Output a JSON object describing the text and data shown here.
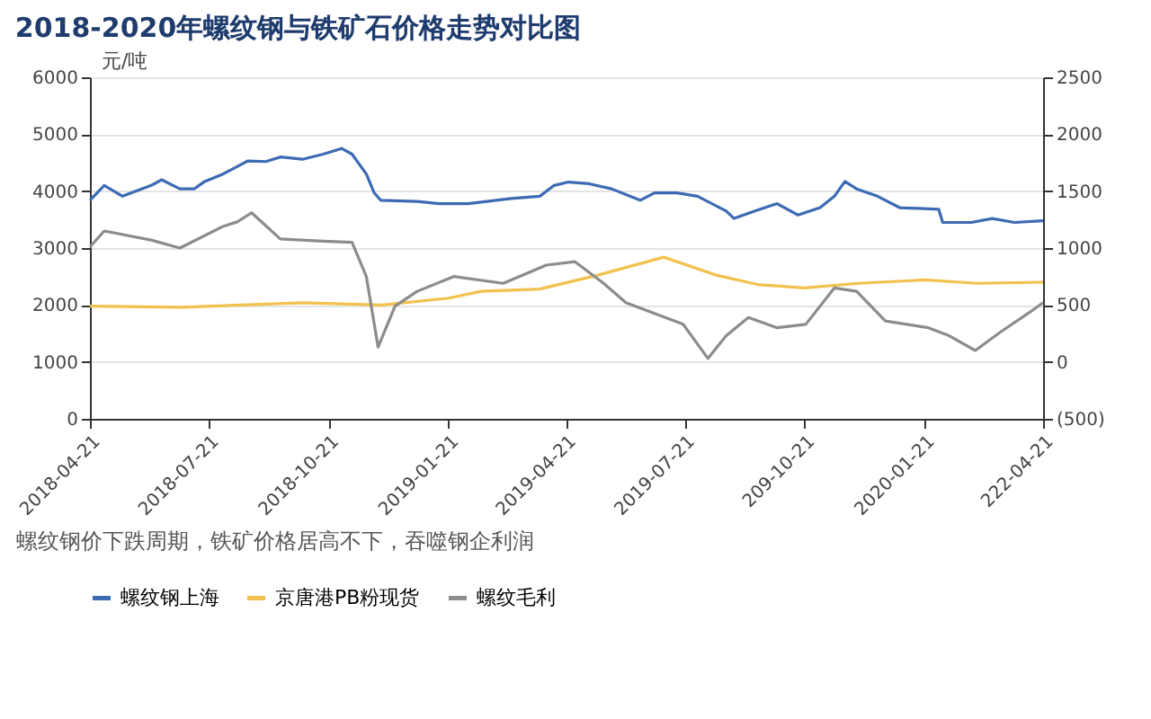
{
  "chart_data": {
    "type": "line",
    "title": "2018-2020年螺纹钢与铁矿石价格走势对比图",
    "ylabel": "元/吨",
    "annotations": [
      "螺纹钢价下跌周期，铁矿价格居高不下，吞噬钢企利润"
    ],
    "xlim": [
      "2018-04-21",
      "2020-04-21"
    ],
    "xticks": [
      "2018-04-21",
      "2018-07-21",
      "2018-10-21",
      "2019-01-21",
      "2019-04-21",
      "2019-07-21",
      {
        "value": "2019-10-21",
        "label": "209-10-21"
      },
      "2020-01-21",
      {
        "value": "2020-04-21",
        "label": "222-04-21"
      }
    ],
    "ylim": [
      0,
      6000
    ],
    "yticks": [
      0,
      1000,
      2000,
      3000,
      4000,
      5000,
      6000
    ],
    "y2lim": [
      -500,
      2500
    ],
    "y2ticks": [
      {
        "value": -500,
        "label": "(500)"
      },
      0,
      500,
      1000,
      1500,
      2000,
      2500
    ],
    "grid": "y",
    "legend": "bottom",
    "marker": "none",
    "line_style": "solid",
    "series": [
      {
        "name": "螺纹钢上海",
        "color": "#3d6bb3",
        "x": [
          "2018-04-21",
          "2018-05-02",
          "2018-05-16",
          "2018-06-07",
          "2018-06-15",
          "2018-06-29",
          "2018-07-10",
          "2018-07-18",
          "2018-08-01",
          "2018-08-20",
          "2018-09-03",
          "2018-09-14",
          "2018-10-01",
          "2018-10-17",
          "2018-10-31",
          "2018-11-08",
          "2018-11-19",
          "2018-11-25",
          "2018-11-30",
          "2018-12-28",
          "2019-01-14",
          "2019-02-05",
          "2019-03-10",
          "2019-04-01",
          "2019-04-12",
          "2019-04-23",
          "2019-05-09",
          "2019-05-26",
          "2019-06-17",
          "2019-06-28",
          "2019-07-15",
          "2019-07-31",
          "2019-08-11",
          "2019-08-22",
          "2019-08-28",
          "2019-09-13",
          "2019-09-30",
          "2019-10-16",
          "2019-11-02",
          "2019-11-13",
          "2019-11-21",
          "2019-11-30",
          "2019-12-16",
          "2020-01-02",
          "2020-02-01",
          "2020-02-04",
          "2020-02-26",
          "2020-03-13",
          "2020-03-30",
          "2020-04-21"
        ],
        "values": [
          3840,
          4100,
          3910,
          4100,
          4200,
          4040,
          4040,
          4170,
          4300,
          4530,
          4520,
          4600,
          4560,
          4650,
          4750,
          4650,
          4300,
          3970,
          3840,
          3820,
          3780,
          3780,
          3870,
          3910,
          4100,
          4160,
          4130,
          4040,
          3840,
          3970,
          3970,
          3910,
          3780,
          3650,
          3520,
          3650,
          3780,
          3580,
          3710,
          3910,
          4170,
          4040,
          3910,
          3710,
          3680,
          3450,
          3450,
          3520,
          3450,
          3480
        ]
      },
      {
        "name": "京唐港PB粉现货",
        "color": "#f2c14e",
        "axis": "y2",
        "x": [
          "2018-04-21",
          "2018-07-01",
          "2018-10-01",
          "2018-12-01",
          "2019-01-21",
          "2019-02-15",
          "2019-04-01",
          "2019-05-15",
          "2019-07-05",
          "2019-08-15",
          "2019-09-15",
          "2019-10-21",
          "2019-12-01",
          "2020-01-21",
          "2020-03-01",
          "2020-04-21"
        ],
        "values": [
          490,
          480,
          520,
          500,
          560,
          620,
          640,
          760,
          920,
          760,
          680,
          650,
          690,
          720,
          690,
          700
        ]
      },
      {
        "name": "螺纹毛利",
        "color": "#8c8c8c",
        "axis": "y2",
        "x": [
          "2018-04-21",
          "2018-05-02",
          "2018-06-07",
          "2018-06-29",
          "2018-08-01",
          "2018-08-12",
          "2018-08-23",
          "2018-09-14",
          "2018-10-17",
          "2018-11-08",
          "2018-11-19",
          "2018-11-28",
          "2018-12-11",
          "2018-12-28",
          "2019-01-25",
          "2019-03-04",
          "2019-04-06",
          "2019-04-28",
          "2019-05-20",
          "2019-06-06",
          "2019-07-20",
          "2019-08-08",
          "2019-08-22",
          "2019-09-08",
          "2019-09-30",
          "2019-10-22",
          "2019-11-13",
          "2019-11-30",
          "2019-12-22",
          "2020-01-24",
          "2020-02-09",
          "2020-02-29",
          "2020-03-19",
          "2020-04-10",
          "2020-04-21"
        ],
        "values": [
          1010,
          1150,
          1070,
          1000,
          1190,
          1230,
          1310,
          1080,
          1060,
          1050,
          750,
          130,
          490,
          620,
          750,
          690,
          850,
          880,
          690,
          520,
          330,
          30,
          230,
          390,
          300,
          330,
          650,
          620,
          360,
          300,
          230,
          100,
          260,
          430,
          520
        ]
      }
    ]
  }
}
